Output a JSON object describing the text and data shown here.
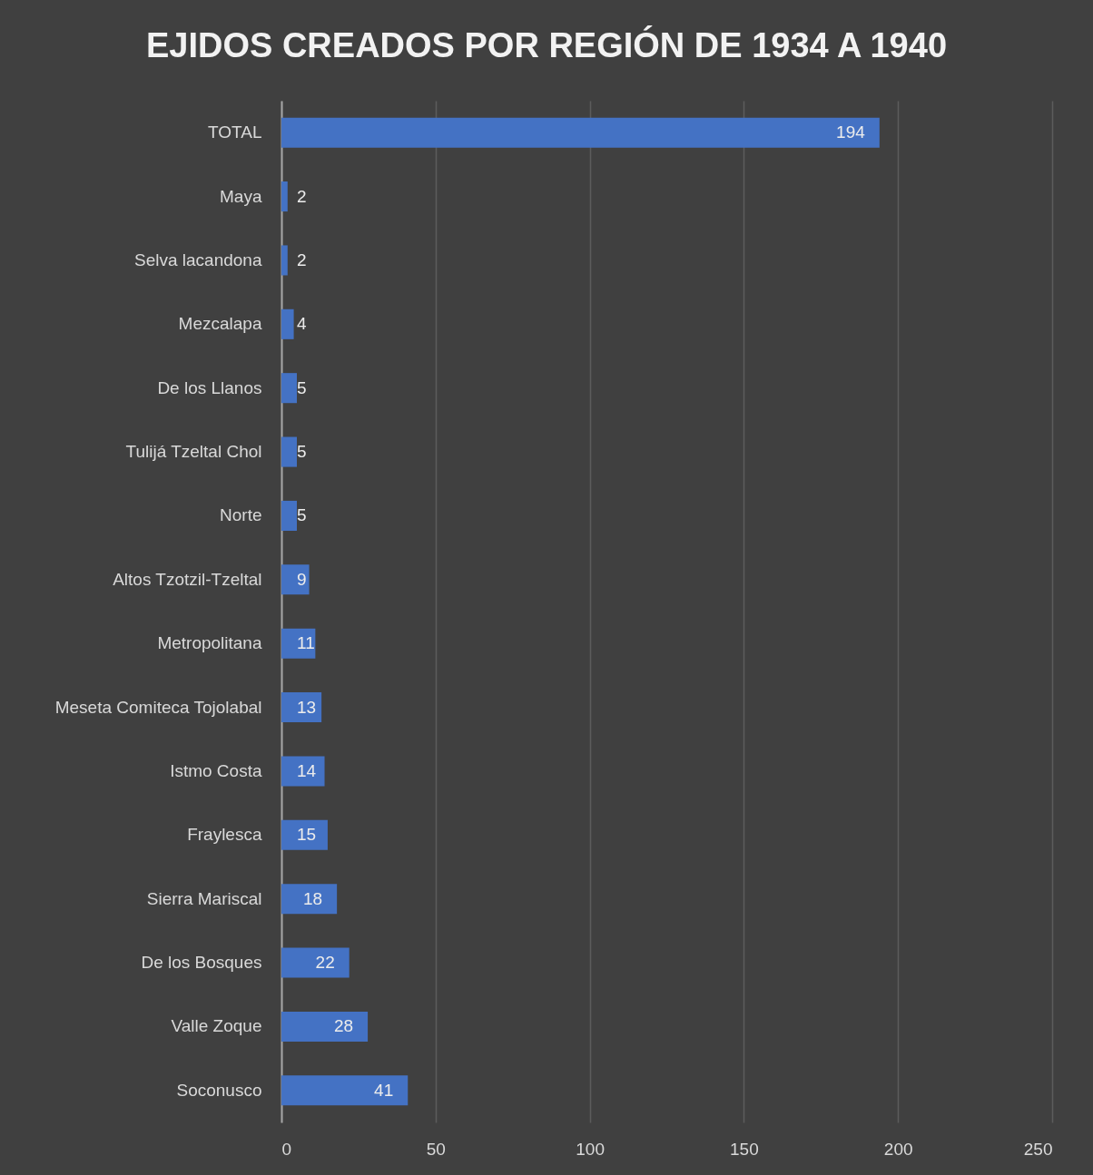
{
  "chart_data": {
    "type": "bar",
    "orientation": "horizontal",
    "title": "EJIDOS CREADOS POR REGIÓN DE 1934 A 1940",
    "categories": [
      "TOTAL",
      "Maya",
      "Selva lacandona",
      "Mezcalapa",
      "De los Llanos",
      "Tulijá Tzeltal Chol",
      "Norte",
      "Altos Tzotzil-Tzeltal",
      "Metropolitana",
      "Meseta Comiteca Tojolabal",
      "Istmo Costa",
      "Fraylesca",
      "Sierra Mariscal",
      "De los Bosques",
      "Valle Zoque",
      "Soconusco"
    ],
    "values": [
      194,
      2,
      2,
      4,
      5,
      5,
      5,
      9,
      11,
      13,
      14,
      15,
      18,
      22,
      28,
      41
    ],
    "color": "#4472c4",
    "xlim": [
      0,
      250
    ],
    "xticks": [
      0,
      50,
      100,
      150,
      200,
      250
    ],
    "grid": "x",
    "data_labels": true
  }
}
